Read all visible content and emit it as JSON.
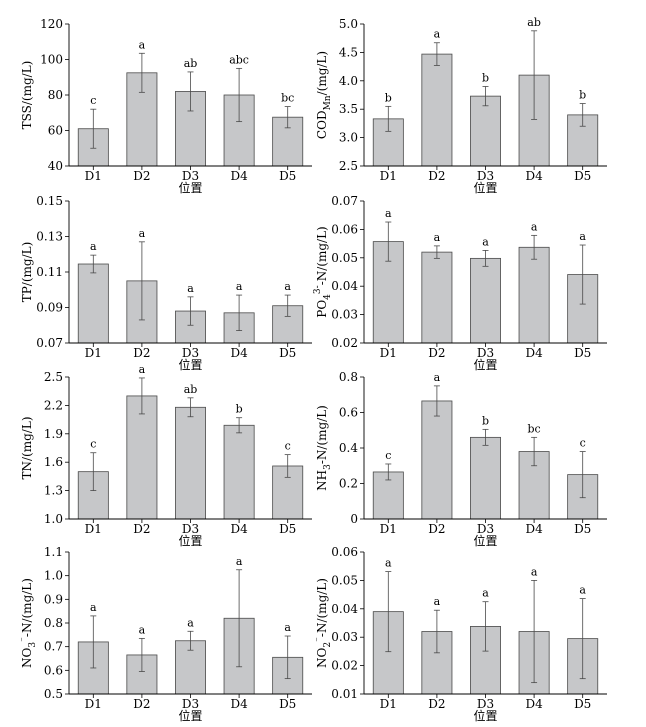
{
  "chart_data": [
    {
      "type": "bar",
      "categories": [
        "D1",
        "D2",
        "D3",
        "D4",
        "D5"
      ],
      "values": [
        61,
        92.5,
        82,
        80,
        67.5
      ],
      "errors": [
        11,
        11,
        11,
        15,
        6
      ],
      "significance": [
        "c",
        "a",
        "ab",
        "abc",
        "bc"
      ],
      "ylabel": "TSS/(mg/L)",
      "xlabel": "位置",
      "ylim": [
        40,
        120
      ],
      "yticks": [
        "40",
        "60",
        "80",
        "100",
        "120"
      ]
    },
    {
      "type": "bar",
      "categories": [
        "D1",
        "D2",
        "D3",
        "D4",
        "D5"
      ],
      "values": [
        3.33,
        4.47,
        3.73,
        4.1,
        3.4
      ],
      "errors": [
        0.22,
        0.2,
        0.17,
        0.78,
        0.2
      ],
      "significance": [
        "b",
        "a",
        "b",
        "ab",
        "b"
      ],
      "ylabel": "COD_Mn/(mg/L)",
      "xlabel": "位置",
      "ylim": [
        2.5,
        5.0
      ],
      "yticks": [
        "2.5",
        "3.0",
        "3.5",
        "4.0",
        "4.5",
        "5.0"
      ]
    },
    {
      "type": "bar",
      "categories": [
        "D1",
        "D2",
        "D3",
        "D4",
        "D5"
      ],
      "values": [
        0.1145,
        0.105,
        0.088,
        0.087,
        0.091
      ],
      "errors": [
        0.005,
        0.022,
        0.008,
        0.01,
        0.006
      ],
      "significance": [
        "a",
        "a",
        "a",
        "a",
        "a"
      ],
      "ylabel": "TP/(mg/L)",
      "xlabel": "位置",
      "ylim": [
        0.07,
        0.15
      ],
      "yticks": [
        "0.07",
        "0.09",
        "0.11",
        "0.13",
        "0.15"
      ]
    },
    {
      "type": "bar",
      "categories": [
        "D1",
        "D2",
        "D3",
        "D4",
        "D5"
      ],
      "values": [
        0.0557,
        0.052,
        0.0498,
        0.0537,
        0.0441
      ],
      "errors": [
        0.0069,
        0.0022,
        0.0028,
        0.0042,
        0.0104
      ],
      "significance": [
        "a",
        "a",
        "a",
        "a",
        "a"
      ],
      "ylabel": "PO4 3- -N/(mg/L)",
      "xlabel": "位置",
      "ylim": [
        0.02,
        0.07
      ],
      "yticks": [
        "0.02",
        "0.03",
        "0.04",
        "0.05",
        "0.06",
        "0.07"
      ]
    },
    {
      "type": "bar",
      "categories": [
        "D1",
        "D2",
        "D3",
        "D4",
        "D5"
      ],
      "values": [
        1.5,
        2.3,
        2.18,
        1.99,
        1.56
      ],
      "errors": [
        0.2,
        0.19,
        0.1,
        0.08,
        0.12
      ],
      "significance": [
        "c",
        "a",
        "ab",
        "b",
        "c"
      ],
      "ylabel": "TN/(mg/L)",
      "xlabel": "位置",
      "ylim": [
        1.0,
        2.5
      ],
      "yticks": [
        "1.0",
        "1.3",
        "1.6",
        "1.9",
        "2.2",
        "2.5"
      ]
    },
    {
      "type": "bar",
      "categories": [
        "D1",
        "D2",
        "D3",
        "D4",
        "D5"
      ],
      "values": [
        0.265,
        0.665,
        0.46,
        0.38,
        0.25
      ],
      "errors": [
        0.045,
        0.085,
        0.045,
        0.08,
        0.13
      ],
      "significance": [
        "c",
        "a",
        "b",
        "bc",
        "c"
      ],
      "ylabel": "NH3-N/(mg/L)",
      "xlabel": "位置",
      "ylim": [
        0,
        0.8
      ],
      "yticks": [
        "0",
        "0.2",
        "0.4",
        "0.6",
        "0.8"
      ]
    },
    {
      "type": "bar",
      "categories": [
        "D1",
        "D2",
        "D3",
        "D4",
        "D5"
      ],
      "values": [
        0.72,
        0.665,
        0.725,
        0.82,
        0.655
      ],
      "errors": [
        0.11,
        0.07,
        0.04,
        0.205,
        0.09
      ],
      "significance": [
        "a",
        "a",
        "a",
        "a",
        "a"
      ],
      "ylabel": "NO3-N/(mg/L)",
      "xlabel": "位置",
      "ylim": [
        0.5,
        1.1
      ],
      "yticks": [
        "0.5",
        "0.6",
        "0.7",
        "0.8",
        "0.9",
        "1.0",
        "1.1"
      ]
    },
    {
      "type": "bar",
      "categories": [
        "D1",
        "D2",
        "D3",
        "D4",
        "D5"
      ],
      "values": [
        0.039,
        0.032,
        0.0338,
        0.032,
        0.0295
      ],
      "errors": [
        0.0141,
        0.0075,
        0.0087,
        0.018,
        0.0141
      ],
      "significance": [
        "a",
        "a",
        "a",
        "a",
        "a"
      ],
      "ylabel": "NO2-N/(mg/L)",
      "xlabel": "位置",
      "ylim": [
        0.01,
        0.06
      ],
      "yticks": [
        "0.01",
        "0.02",
        "0.03",
        "0.04",
        "0.05",
        "0.06"
      ]
    }
  ]
}
